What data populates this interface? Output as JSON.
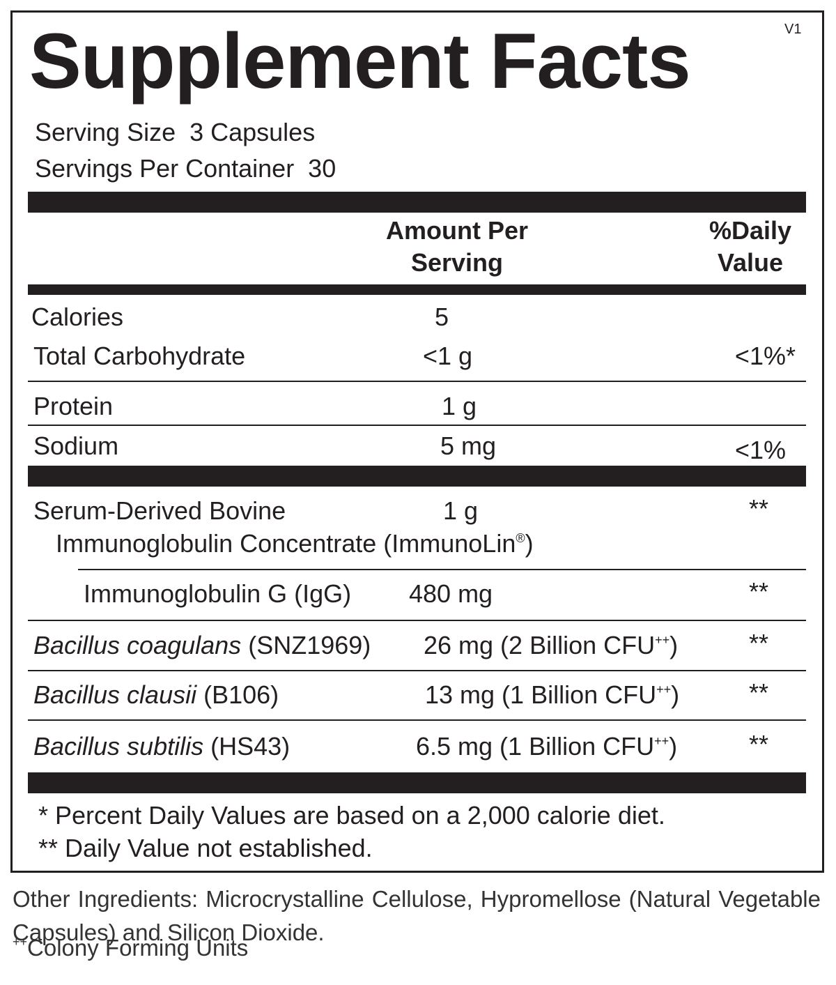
{
  "version": "V1",
  "title": "Supplement Facts",
  "serving_size": "Serving Size  3 Capsules",
  "servings_per_container": "Servings Per Container  30",
  "header": {
    "amount_line1": "Amount Per",
    "amount_line2": "Serving",
    "dv_line1": "%Daily",
    "dv_line2": "Value"
  },
  "nutrients": [
    {
      "name": "Calories",
      "amount": "5"
    },
    {
      "name": "Total Carbohydrate",
      "amount": "<1 g",
      "dv": "<1%*"
    },
    {
      "name": "Protein",
      "amount": "1 g"
    },
    {
      "name": "Sodium",
      "amount": "5 mg",
      "dv": "<1%"
    }
  ],
  "serum": {
    "name_line1": "Serum-Derived Bovine",
    "name_line2": "Immunoglobulin Concentrate (ImmunoLin",
    "mark": "®",
    "name_line2_end": ")",
    "amount": "1 g",
    "dv": "**"
  },
  "igg": {
    "name": "Immunoglobulin G (IgG)",
    "amount": "480 mg",
    "dv": "**"
  },
  "probiotics": [
    {
      "species": "Bacillus coagulans",
      "strain": "(SNZ1969)",
      "amount": "26 mg (2 Billion CFU",
      "sup": "++",
      "close": ")",
      "dv": "**"
    },
    {
      "species": "Bacillus clausii",
      "strain": "(B106)",
      "amount": "13 mg (1 Billion CFU",
      "sup": "++",
      "close": ")",
      "dv": "**"
    },
    {
      "species": "Bacillus subtilis",
      "strain": "(HS43)",
      "amount": "6.5 mg (1 Billion CFU",
      "sup": "++",
      "close": ")",
      "dv": "**"
    }
  ],
  "footnotes": [
    "* Percent Daily Values are based on a 2,000 calorie diet.",
    "** Daily Value not established."
  ],
  "other_ingredients": "Other Ingredients: Microcrystalline Cellulose, Hypromellose (Natural Vegetable Capsules) and Silicon Dioxide.",
  "cfu_note": {
    "sup": "++",
    "text": "Colony Forming Units"
  }
}
